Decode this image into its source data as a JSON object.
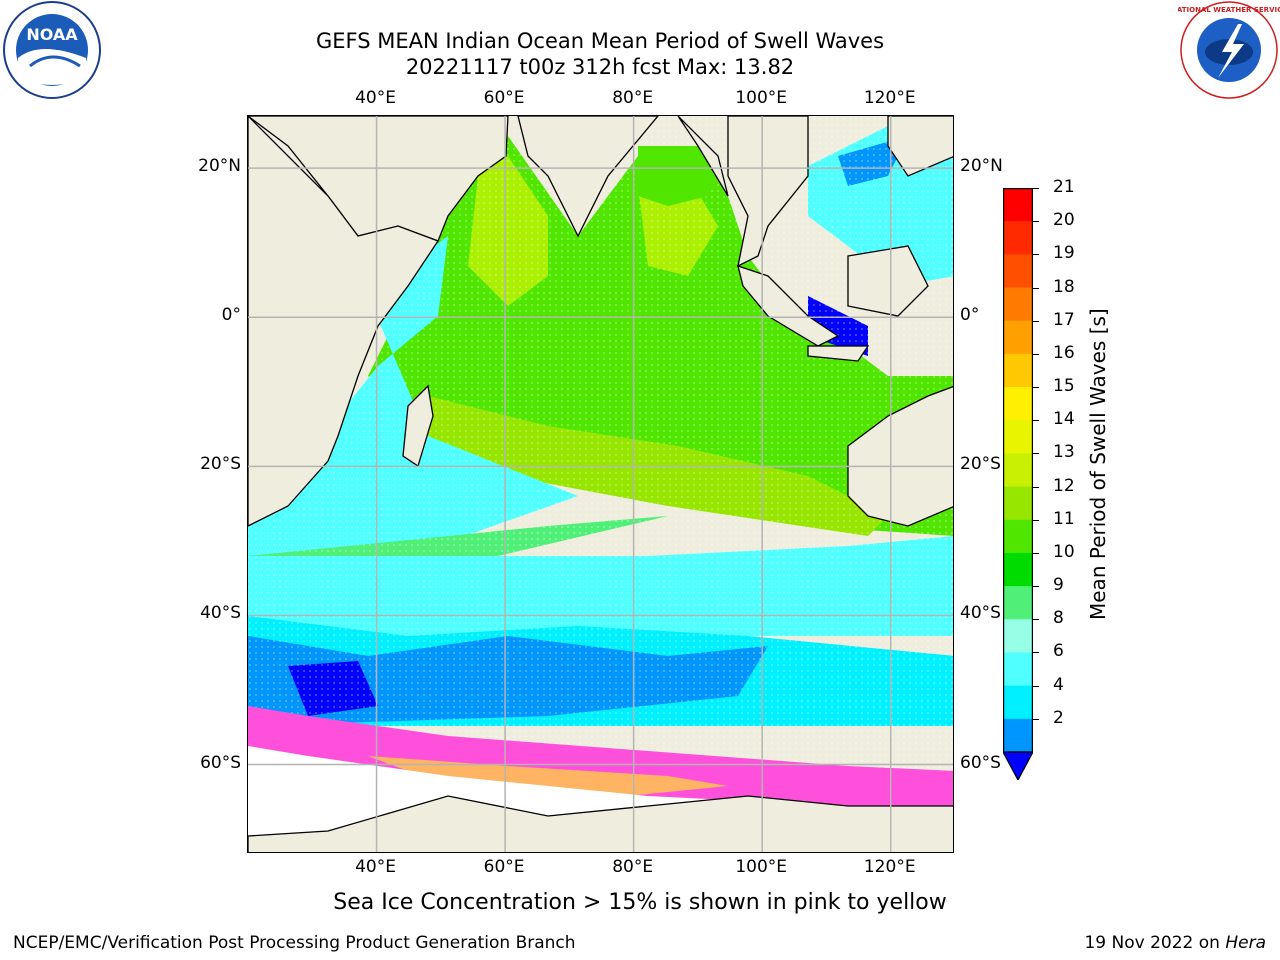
{
  "header": {
    "title_line1": "GEFS MEAN Indian Ocean Mean Period of Swell Waves",
    "title_line2": "20221117 t00z 312h fcst   Max: 13.82"
  },
  "logos": {
    "left": "noaa-logo",
    "right": "national-weather-service-logo",
    "left_text": "NOAA",
    "right_text": "NATIONAL WEATHER SERVICE"
  },
  "map": {
    "lon_labels": [
      "40°E",
      "60°E",
      "80°E",
      "100°E",
      "120°E"
    ],
    "lat_labels": [
      "20°N",
      "0°",
      "20°S",
      "40°S",
      "60°S"
    ],
    "lon_range": [
      20,
      130
    ],
    "lat_range": [
      -72,
      27
    ]
  },
  "colorbar": {
    "label": "Mean Period of Swell Waves [s]",
    "ticks": [
      "21",
      "20",
      "19",
      "18",
      "17",
      "16",
      "15",
      "14",
      "13",
      "12",
      "11",
      "10",
      "9",
      "8",
      "6",
      "4",
      "2"
    ],
    "colors": [
      "#ff0000",
      "#ff2a00",
      "#ff5000",
      "#ff7a00",
      "#ffa000",
      "#ffc800",
      "#fff000",
      "#e8f500",
      "#c8f000",
      "#96e600",
      "#50e600",
      "#00dc00",
      "#50f078",
      "#96ffe6",
      "#50ffff",
      "#00f0ff",
      "#0096ff"
    ],
    "under_color": "#0000ff"
  },
  "caption": "Sea Ice Concentration > 15% is shown in pink to yellow",
  "footer": {
    "left": "NCEP/EMC/Verification Post Processing Product Generation Branch",
    "right_date": "19 Nov 2022 on ",
    "right_machine": "Hera"
  },
  "colors": {
    "land": "#efedde",
    "ice_pink": "#ff50dc",
    "ice_orange": "#ffb464",
    "gridline": "#b4b4b4"
  }
}
